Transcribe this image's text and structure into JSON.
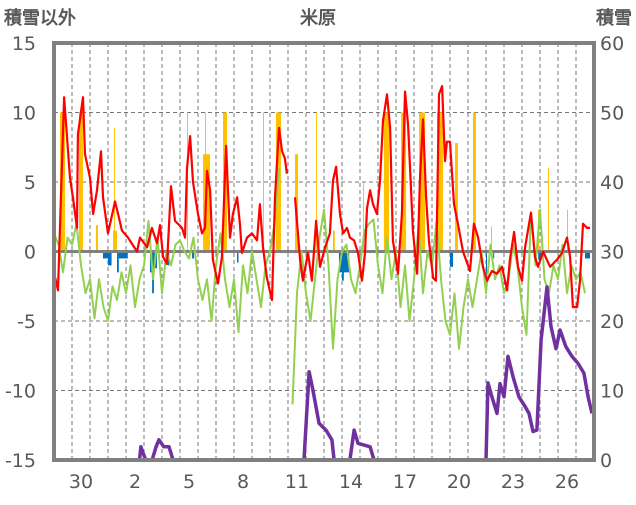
{
  "chart_data": {
    "type": "line",
    "title": "米原",
    "ylabel_left": "積雪以外",
    "ylabel_right": "積雪",
    "ylim_left": [
      -15,
      15
    ],
    "ylim_right": [
      0,
      60
    ],
    "xlim_days": [
      0,
      30
    ],
    "grid": true,
    "left_ticks": [
      "15",
      "10",
      "5",
      "0",
      "-5",
      "-10",
      "-15"
    ],
    "left_tick_values": [
      15,
      10,
      5,
      0,
      -5,
      -10,
      -15
    ],
    "right_ticks": [
      "60",
      "50",
      "40",
      "30",
      "20",
      "10",
      "0"
    ],
    "right_tick_values": [
      60,
      50,
      40,
      30,
      20,
      10,
      0
    ],
    "x_ticks": [
      {
        "label": "30",
        "day": 1.5
      },
      {
        "label": "2",
        "day": 4.5
      },
      {
        "label": "5",
        "day": 7.5
      },
      {
        "label": "8",
        "day": 10.5
      },
      {
        "label": "11",
        "day": 13.5
      },
      {
        "label": "14",
        "day": 16.5
      },
      {
        "label": "17",
        "day": 19.5
      },
      {
        "label": "20",
        "day": 22.5
      },
      {
        "label": "23",
        "day": 25.5
      },
      {
        "label": "26",
        "day": 28.5
      }
    ],
    "colors": {
      "red": "#ff0000",
      "green": "#92d050",
      "orange": "#ffc000",
      "blue": "#0070c0",
      "purple": "#7030a0",
      "frame": "#808080"
    },
    "series": [
      {
        "name": "red",
        "axis": "left",
        "points": [
          [
            0,
            -1.5
          ],
          [
            0.22,
            -2.8
          ],
          [
            0.56,
            11.1
          ],
          [
            0.89,
            5.3
          ],
          [
            1.06,
            3.8
          ],
          [
            1.28,
            1.7
          ],
          [
            1.33,
            8.4
          ],
          [
            1.61,
            11.1
          ],
          [
            1.72,
            7
          ],
          [
            2.0,
            5.3
          ],
          [
            2.17,
            2.7
          ],
          [
            2.39,
            4.4
          ],
          [
            2.61,
            7.2
          ],
          [
            2.72,
            3.9
          ],
          [
            3.0,
            1.3
          ],
          [
            3.39,
            3.6
          ],
          [
            3.56,
            2.7
          ],
          [
            3.78,
            1.5
          ],
          [
            4.11,
            1
          ],
          [
            4.61,
            0
          ],
          [
            4.78,
            1
          ],
          [
            5.17,
            0.3
          ],
          [
            5.44,
            1.7
          ],
          [
            5.72,
            0.6
          ],
          [
            5.89,
            1.9
          ],
          [
            6.06,
            -0.4
          ],
          [
            6.28,
            -0.9
          ],
          [
            6.5,
            4.7
          ],
          [
            6.72,
            2.2
          ],
          [
            7.11,
            1.7
          ],
          [
            7.28,
            1
          ],
          [
            7.39,
            6
          ],
          [
            7.56,
            8.3
          ],
          [
            7.72,
            5
          ],
          [
            8.0,
            2.7
          ],
          [
            8.22,
            1.3
          ],
          [
            8.39,
            1.7
          ],
          [
            8.5,
            5.8
          ],
          [
            8.67,
            4.4
          ],
          [
            8.83,
            -0.6
          ],
          [
            9.11,
            -2.3
          ],
          [
            9.33,
            -0.4
          ],
          [
            9.56,
            7.6
          ],
          [
            9.78,
            1
          ],
          [
            9.94,
            2.7
          ],
          [
            10.17,
            3.9
          ],
          [
            10.33,
            2
          ],
          [
            10.44,
            -0.1
          ],
          [
            10.72,
            1
          ],
          [
            11.0,
            1.3
          ],
          [
            11.28,
            0.8
          ],
          [
            11.44,
            3.4
          ],
          [
            11.61,
            0.3
          ],
          [
            11.83,
            -1.9
          ],
          [
            12.11,
            -3.5
          ],
          [
            12.28,
            3.9
          ],
          [
            12.5,
            8.9
          ],
          [
            12.67,
            7.2
          ],
          [
            12.83,
            6.7
          ],
          [
            12.94,
            5.6
          ],
          null,
          [
            13.39,
            3.9
          ],
          [
            13.67,
            -0.6
          ],
          [
            13.83,
            -2.1
          ],
          [
            14.11,
            -0.1
          ],
          [
            14.33,
            -2.1
          ],
          [
            14.56,
            2.2
          ],
          [
            14.78,
            -1.1
          ],
          [
            15.06,
            0.3
          ],
          [
            15.33,
            1.3
          ],
          [
            15.5,
            5.1
          ],
          [
            15.67,
            6.1
          ],
          [
            15.89,
            2.7
          ],
          [
            16.06,
            1.3
          ],
          [
            16.28,
            1.7
          ],
          [
            16.44,
            1
          ],
          [
            16.67,
            0.8
          ],
          [
            16.89,
            -0.1
          ],
          [
            17.11,
            -2.1
          ],
          [
            17.28,
            -0.1
          ],
          [
            17.39,
            3.1
          ],
          [
            17.56,
            4.4
          ],
          [
            17.72,
            3.4
          ],
          [
            17.94,
            2.7
          ],
          [
            18.11,
            5.1
          ],
          [
            18.28,
            9.4
          ],
          [
            18.5,
            11.3
          ],
          [
            18.67,
            8.9
          ],
          [
            18.83,
            0.8
          ],
          [
            19.11,
            -1.6
          ],
          [
            19.33,
            2.7
          ],
          [
            19.5,
            11.5
          ],
          [
            19.67,
            9.1
          ],
          [
            19.94,
            1.5
          ],
          [
            20.17,
            -1.6
          ],
          [
            20.33,
            5.1
          ],
          [
            20.5,
            9.5
          ],
          [
            20.67,
            3.9
          ],
          [
            20.83,
            0.8
          ],
          [
            21.06,
            -1.9
          ],
          [
            21.22,
            -2.1
          ],
          [
            21.39,
            11.3
          ],
          [
            21.56,
            11.9
          ],
          [
            21.72,
            6.5
          ],
          [
            21.83,
            7.9
          ],
          [
            22.0,
            7.9
          ],
          [
            22.22,
            3.4
          ],
          [
            22.44,
            2
          ],
          [
            22.72,
            0
          ],
          [
            23.11,
            -1.4
          ],
          [
            23.33,
            2
          ],
          [
            23.56,
            1
          ],
          [
            23.83,
            -1.1
          ],
          [
            24.06,
            -2.1
          ],
          [
            24.33,
            -1.4
          ],
          [
            24.61,
            -1.6
          ],
          [
            24.89,
            -1.1
          ],
          [
            25.17,
            -2.8
          ],
          [
            25.33,
            -0.6
          ],
          [
            25.56,
            1.4
          ],
          [
            25.78,
            -1.1
          ],
          [
            26.0,
            -2.1
          ],
          [
            26.17,
            0.3
          ],
          [
            26.5,
            2.8
          ],
          [
            26.72,
            -0.4
          ],
          [
            26.89,
            -1.1
          ],
          [
            27.17,
            0
          ],
          [
            27.56,
            -1.1
          ],
          [
            27.94,
            -0.6
          ],
          [
            28.22,
            -0.1
          ],
          [
            28.5,
            1
          ],
          [
            28.67,
            -0.4
          ],
          [
            28.83,
            -4
          ],
          [
            29.06,
            -4
          ],
          [
            29.22,
            -2.1
          ],
          [
            29.39,
            2
          ],
          [
            29.61,
            1.7
          ],
          [
            29.78,
            1.7
          ]
        ]
      },
      {
        "name": "green",
        "axis": "left",
        "step_days": 0.25,
        "values": [
          1.3,
          0.5,
          -1.5,
          1,
          0.5,
          2,
          -1,
          -3,
          -2,
          -4.8,
          -2,
          -4,
          -5,
          -2.5,
          -3.5,
          -1.5,
          -3,
          -1,
          -4,
          -2,
          -1,
          2.2,
          -2,
          1,
          -3,
          0,
          -1,
          0.5,
          0.8,
          0,
          -0.5,
          1,
          -2,
          -3.5,
          -2,
          -5,
          -1,
          1.3,
          -2,
          -4,
          -2,
          -5.8,
          -1,
          -3,
          0,
          -2,
          -4,
          -1,
          0,
          2,
          6,
          null,
          null,
          -11,
          -3,
          0,
          -3,
          -5,
          -2,
          1,
          3,
          -1,
          -7,
          -2,
          0,
          0.5,
          -2,
          -3,
          -1,
          1.5,
          2,
          2.3,
          -1,
          -3,
          1,
          -2,
          0,
          -4,
          -1,
          -5,
          -2,
          1.8,
          -3,
          0,
          -1,
          2.2,
          -2,
          -5,
          -6,
          -3,
          -7,
          -4,
          -2,
          -4,
          -2,
          0,
          -3,
          0.5,
          -2,
          -1,
          -3,
          -2,
          0.5,
          -1,
          -4,
          -6,
          2.8,
          -1,
          3,
          -2,
          -3,
          -1,
          -2,
          0.5,
          -3,
          -1,
          -2,
          -1.5,
          -3
        ]
      },
      {
        "name": "purple",
        "axis": "right",
        "points": [
          [
            0,
            0
          ],
          [
            4.75,
            0
          ],
          [
            4.83,
            1.9
          ],
          [
            4.95,
            1
          ],
          [
            5.1,
            0
          ],
          [
            5.45,
            0
          ],
          [
            5.67,
            1.9
          ],
          [
            5.83,
            2.9
          ],
          [
            6.1,
            1.9
          ],
          [
            6.39,
            1.9
          ],
          [
            6.61,
            0
          ],
          [
            13.05,
            0
          ],
          null,
          [
            13.45,
            0
          ],
          [
            13.89,
            0
          ],
          [
            14.17,
            12.7
          ],
          [
            14.39,
            10
          ],
          [
            14.72,
            5.3
          ],
          [
            15.11,
            4.3
          ],
          [
            15.44,
            2.9
          ],
          [
            15.56,
            0
          ],
          [
            16.44,
            0
          ],
          [
            16.67,
            4.3
          ],
          [
            16.89,
            2.4
          ],
          [
            17.56,
            1.9
          ],
          [
            17.78,
            0
          ],
          [
            24,
            0
          ],
          [
            24.11,
            11.1
          ],
          [
            24.33,
            9.1
          ],
          [
            24.61,
            6.7
          ],
          [
            24.78,
            11
          ],
          [
            25,
            9.1
          ],
          [
            25.22,
            14.9
          ],
          [
            25.5,
            12
          ],
          [
            25.83,
            9.1
          ],
          [
            26.17,
            7.7
          ],
          [
            26.39,
            6.7
          ],
          [
            26.61,
            4.1
          ],
          [
            26.83,
            4.3
          ],
          [
            27.06,
            17.3
          ],
          [
            27.39,
            24.9
          ],
          [
            27.61,
            19.2
          ],
          [
            27.89,
            16
          ],
          [
            28.11,
            18.7
          ],
          [
            28.44,
            16.3
          ],
          [
            28.78,
            14.9
          ],
          [
            29.11,
            13.9
          ],
          [
            29.44,
            12.5
          ],
          [
            29.67,
            9.1
          ],
          [
            29.89,
            6.7
          ]
        ]
      }
    ],
    "bars": [
      {
        "name": "orange",
        "axis": "left",
        "items": [
          [
            0.33,
            0.61,
            10
          ],
          [
            1.39,
            1.61,
            10
          ],
          [
            2.33,
            2.44,
            1.9
          ],
          [
            3.28,
            3.5,
            1.5
          ],
          [
            3.33,
            3.38,
            8.9
          ],
          [
            7.39,
            7.43,
            10
          ],
          [
            8.28,
            8.67,
            7
          ],
          [
            8.39,
            8.43,
            10
          ],
          [
            9.39,
            9.61,
            10
          ],
          [
            11.61,
            11.65,
            10
          ],
          [
            12.33,
            12.61,
            10
          ],
          [
            13.39,
            13.56,
            7
          ],
          [
            14.56,
            14.6,
            10
          ],
          [
            15.5,
            15.6,
            1.5
          ],
          [
            17.17,
            17.21,
            5
          ],
          [
            18.33,
            18.61,
            10
          ],
          [
            19.28,
            19.56,
            10
          ],
          [
            20.28,
            20.61,
            10
          ],
          [
            21.28,
            21.61,
            10
          ],
          [
            22.28,
            22.44,
            7.8
          ],
          [
            23.28,
            23.44,
            10
          ],
          [
            24.28,
            24.32,
            1.8
          ],
          [
            26.89,
            26.93,
            3
          ],
          [
            27.44,
            27.48,
            6
          ],
          [
            28.5,
            28.54,
            3
          ]
        ]
      },
      {
        "name": "blue",
        "axis": "left",
        "items": [
          [
            2.72,
            3.0,
            -0.5
          ],
          [
            3.0,
            3.2,
            -1
          ],
          [
            3.5,
            3.6,
            -1.5
          ],
          [
            3.6,
            4.1,
            -0.5
          ],
          [
            5.33,
            5.45,
            -1.5
          ],
          [
            5.45,
            5.55,
            -3
          ],
          [
            5.55,
            5.72,
            -1.2
          ],
          [
            6.33,
            6.4,
            -1
          ],
          [
            7.67,
            7.78,
            -0.5
          ],
          [
            10.17,
            10.25,
            -0.8
          ],
          [
            14.1,
            14.15,
            -0.4
          ],
          [
            15.83,
            16.4,
            -1.5
          ],
          [
            16.0,
            16.1,
            -2.1
          ],
          [
            22.0,
            22.17,
            -1.1
          ],
          [
            24.0,
            24.05,
            -1.6
          ],
          [
            24.4,
            24.44,
            -0.5
          ],
          [
            26.9,
            27.1,
            -0.6
          ],
          [
            29.5,
            29.78,
            -0.5
          ]
        ]
      }
    ]
  }
}
